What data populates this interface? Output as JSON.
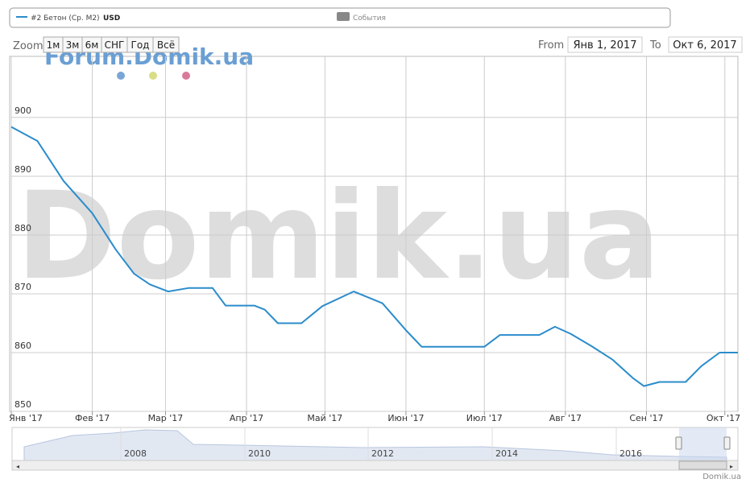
{
  "legend": {
    "series_label": "#2 Бетон (Ср. М2)",
    "currency": "USD",
    "events": "События"
  },
  "range_selector": {
    "zoom": "Zoom",
    "buttons": [
      "1м",
      "3м",
      "6м",
      "СНГ",
      "Год",
      "Всё"
    ],
    "from_label": "From",
    "from": "Янв 1, 2017",
    "to_label": "To",
    "to": "Окт 6, 2017"
  },
  "watermarks": {
    "small": "Forum.Domik.ua",
    "large": "Domik.ua"
  },
  "navigator": {
    "years": [
      "2008",
      "2010",
      "2012",
      "2014",
      "2016"
    ]
  },
  "credit": "Domik.ua",
  "chart_data": {
    "type": "line",
    "x": [
      0,
      10,
      20,
      31,
      40,
      47,
      53,
      60,
      68,
      77,
      82,
      93,
      97,
      102,
      111,
      119,
      131,
      142,
      151,
      157,
      181,
      187,
      202,
      208,
      214,
      222,
      230,
      238,
      242,
      248,
      258,
      264,
      271,
      278
    ],
    "series": [
      {
        "name": "#2 Бетон (Ср. М2)",
        "color": "#2b8ccb",
        "values": [
          898.4,
          896,
          889.2,
          883.7,
          877.5,
          873.4,
          871.6,
          870.4,
          871,
          871,
          868,
          868,
          867.3,
          865,
          865,
          867.9,
          870.4,
          868.4,
          863.8,
          861,
          861,
          863,
          863,
          864.4,
          863.2,
          861.1,
          858.8,
          855.6,
          854.3,
          855,
          855,
          857.7,
          860,
          860
        ]
      }
    ],
    "xlim": [
      0,
      278
    ],
    "xticks": [
      {
        "value": 0,
        "label": "Янв '17"
      },
      {
        "value": 31,
        "label": "Фев '17"
      },
      {
        "value": 59,
        "label": "Мар '17"
      },
      {
        "value": 90,
        "label": "Апр '17"
      },
      {
        "value": 120,
        "label": "Май '17"
      },
      {
        "value": 151,
        "label": "Июн '17"
      },
      {
        "value": 181,
        "label": "Июл '17"
      },
      {
        "value": 212,
        "label": "Авг '17"
      },
      {
        "value": 243,
        "label": "Сен '17"
      },
      {
        "value": 273,
        "label": "Окт '17"
      }
    ],
    "ylim": [
      850,
      910.4
    ],
    "yticks": [
      850,
      860,
      870,
      880,
      890,
      900
    ],
    "grid": true
  }
}
